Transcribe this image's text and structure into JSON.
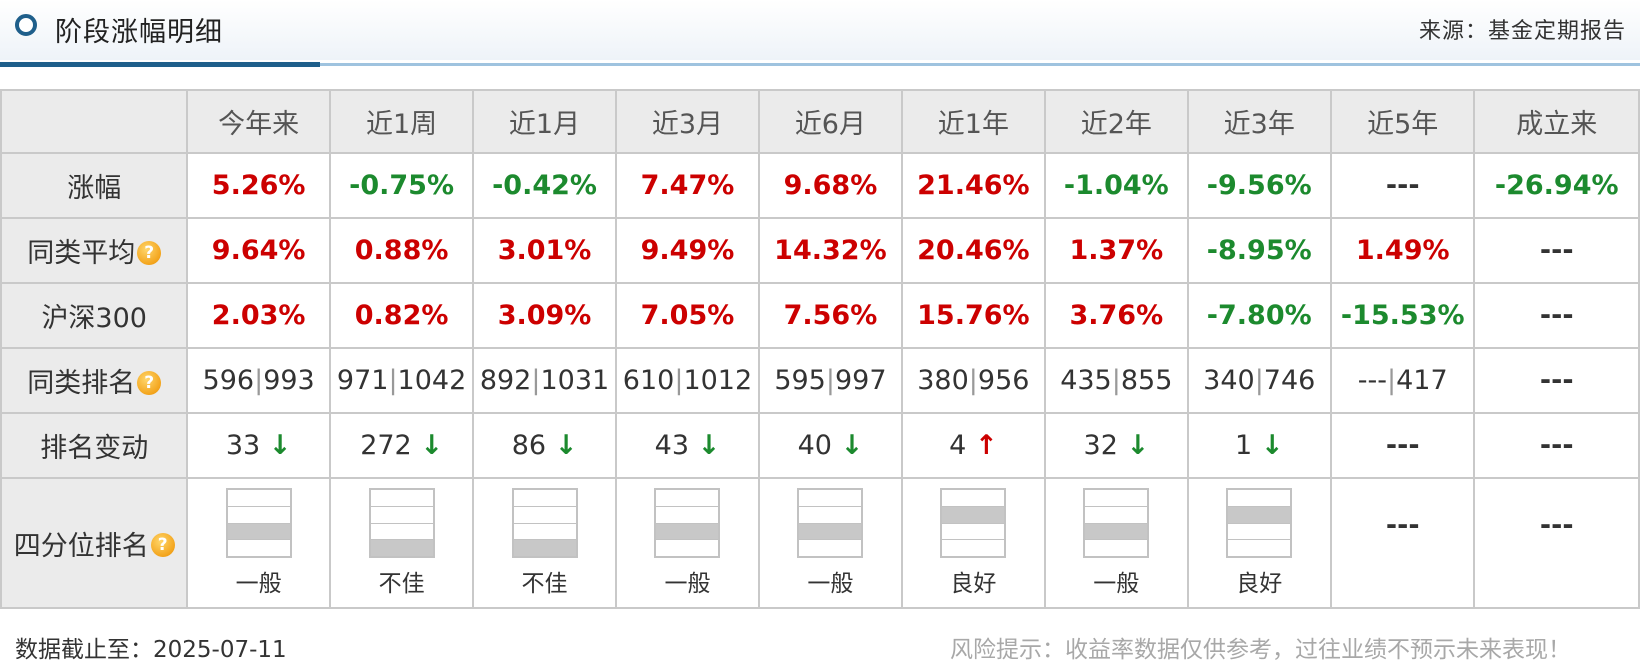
{
  "header": {
    "title": "阶段涨幅明细",
    "source": "来源：基金定期报告"
  },
  "columns": [
    "今年来",
    "近1周",
    "近1月",
    "近3月",
    "近6月",
    "近1年",
    "近2年",
    "近3年",
    "近5年",
    "成立来"
  ],
  "rows": {
    "gain": {
      "label": "涨幅",
      "values": [
        {
          "text": "5.26%",
          "dir": "up"
        },
        {
          "text": "-0.75%",
          "dir": "down"
        },
        {
          "text": "-0.42%",
          "dir": "down"
        },
        {
          "text": "7.47%",
          "dir": "up"
        },
        {
          "text": "9.68%",
          "dir": "up"
        },
        {
          "text": "21.46%",
          "dir": "up"
        },
        {
          "text": "-1.04%",
          "dir": "down"
        },
        {
          "text": "-9.56%",
          "dir": "down"
        },
        {
          "text": "---",
          "dir": "flat"
        },
        {
          "text": "-26.94%",
          "dir": "down"
        }
      ]
    },
    "peer_avg": {
      "label": "同类平均",
      "values": [
        {
          "text": "9.64%",
          "dir": "up"
        },
        {
          "text": "0.88%",
          "dir": "up"
        },
        {
          "text": "3.01%",
          "dir": "up"
        },
        {
          "text": "9.49%",
          "dir": "up"
        },
        {
          "text": "14.32%",
          "dir": "up"
        },
        {
          "text": "20.46%",
          "dir": "up"
        },
        {
          "text": "1.37%",
          "dir": "up"
        },
        {
          "text": "-8.95%",
          "dir": "down"
        },
        {
          "text": "1.49%",
          "dir": "up"
        },
        {
          "text": "---",
          "dir": "flat"
        }
      ]
    },
    "hs300": {
      "label": "沪深300",
      "values": [
        {
          "text": "2.03%",
          "dir": "up"
        },
        {
          "text": "0.82%",
          "dir": "up"
        },
        {
          "text": "3.09%",
          "dir": "up"
        },
        {
          "text": "7.05%",
          "dir": "up"
        },
        {
          "text": "7.56%",
          "dir": "up"
        },
        {
          "text": "15.76%",
          "dir": "up"
        },
        {
          "text": "3.76%",
          "dir": "up"
        },
        {
          "text": "-7.80%",
          "dir": "down"
        },
        {
          "text": "-15.53%",
          "dir": "down"
        },
        {
          "text": "---",
          "dir": "flat"
        }
      ]
    },
    "peer_rank": {
      "label": "同类排名",
      "values": [
        {
          "rank": "596",
          "total": "993"
        },
        {
          "rank": "971",
          "total": "1042"
        },
        {
          "rank": "892",
          "total": "1031"
        },
        {
          "rank": "610",
          "total": "1012"
        },
        {
          "rank": "595",
          "total": "997"
        },
        {
          "rank": "380",
          "total": "956"
        },
        {
          "rank": "435",
          "total": "855"
        },
        {
          "rank": "340",
          "total": "746"
        },
        {
          "rank": "---",
          "total": "417"
        },
        {
          "text": "---"
        }
      ]
    },
    "rank_change": {
      "label": "排名变动",
      "values": [
        {
          "text": "33",
          "arrow": "↓",
          "dir": "down"
        },
        {
          "text": "272",
          "arrow": "↓",
          "dir": "down"
        },
        {
          "text": "86",
          "arrow": "↓",
          "dir": "down"
        },
        {
          "text": "43",
          "arrow": "↓",
          "dir": "down"
        },
        {
          "text": "40",
          "arrow": "↓",
          "dir": "down"
        },
        {
          "text": "4",
          "arrow": "↑",
          "dir": "up"
        },
        {
          "text": "32",
          "arrow": "↓",
          "dir": "down"
        },
        {
          "text": "1",
          "arrow": "↓",
          "dir": "down"
        },
        {
          "text": "---"
        },
        {
          "text": "---"
        }
      ]
    },
    "quartile": {
      "label": "四分位排名",
      "values": [
        {
          "quartile": 3,
          "label": "一般"
        },
        {
          "quartile": 4,
          "label": "不佳"
        },
        {
          "quartile": 4,
          "label": "不佳"
        },
        {
          "quartile": 3,
          "label": "一般"
        },
        {
          "quartile": 3,
          "label": "一般"
        },
        {
          "quartile": 2,
          "label": "良好"
        },
        {
          "quartile": 3,
          "label": "一般"
        },
        {
          "quartile": 2,
          "label": "良好"
        },
        {
          "text": "---"
        },
        {
          "text": "---"
        }
      ]
    }
  },
  "help_icon_glyph": "?",
  "colors": {
    "up": "#cc0000",
    "down": "#1c8a2e",
    "header_blue": "#1f5f8b"
  },
  "footer": {
    "date": "数据截止至：2025-07-11",
    "risk": "风险提示：收益率数据仅供参考，过往业绩不预示未来表现！"
  }
}
